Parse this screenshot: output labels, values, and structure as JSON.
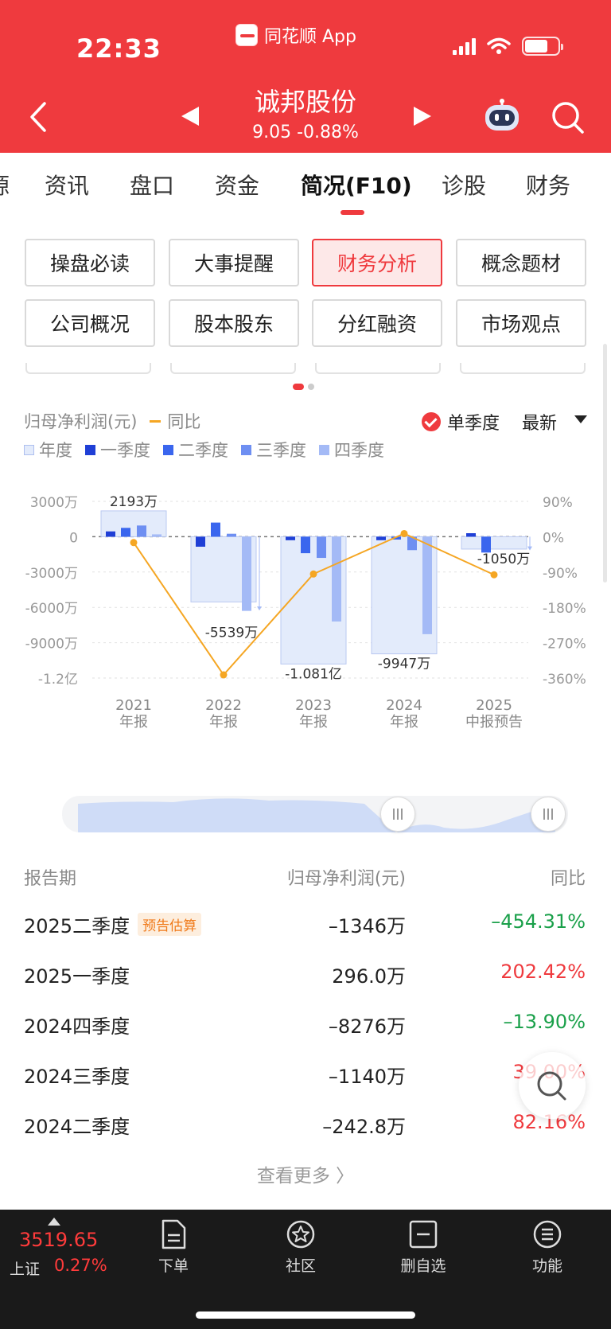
{
  "status_bar": {
    "time": "22:33",
    "app_name": "同花顺 App"
  },
  "header": {
    "stock_name": "诚邦股份",
    "stock_price": "9.05 -0.88%"
  },
  "tabs": [
    {
      "label": "源"
    },
    {
      "label": "资讯"
    },
    {
      "label": "盘口"
    },
    {
      "label": "资金"
    },
    {
      "label": "简况(F10)"
    },
    {
      "label": "诊股"
    },
    {
      "label": "财务"
    }
  ],
  "sub_buttons": [
    {
      "label": "操盘必读"
    },
    {
      "label": "大事提醒"
    },
    {
      "label": "财务分析"
    },
    {
      "label": "概念题材"
    },
    {
      "label": "公司概况"
    },
    {
      "label": "股本股东"
    },
    {
      "label": "分红融资"
    },
    {
      "label": "市场观点"
    }
  ],
  "chart_header": {
    "metric": "归母净利润(元)",
    "yoy_label": "同比",
    "single_quarter": "单季度",
    "latest": "最新"
  },
  "legend": [
    {
      "label": "年度",
      "color": "#e3ebfb"
    },
    {
      "label": "一季度",
      "color": "#1f3fd6"
    },
    {
      "label": "二季度",
      "color": "#3a66ee"
    },
    {
      "label": "三季度",
      "color": "#6e8ff2"
    },
    {
      "label": "四季度",
      "color": "#a4baf6"
    }
  ],
  "chart_data": {
    "type": "bar",
    "categories": [
      "2021\n年报",
      "2022\n年报",
      "2023\n年报",
      "2024\n年报",
      "2025\n中报预告"
    ],
    "annual_values_wan": [
      2193,
      -5539,
      -10810,
      -9947,
      -1050
    ],
    "annual_labels": [
      "2193万",
      "-5539万",
      "-1.081亿",
      "-9947万",
      "-1050万"
    ],
    "series": [
      {
        "name": "一季度",
        "values": [
          450,
          -850,
          -300,
          -300,
          296
        ]
      },
      {
        "name": "二季度",
        "values": [
          750,
          1200,
          -1400,
          -243,
          -1346
        ]
      },
      {
        "name": "三季度",
        "values": [
          950,
          250,
          -1800,
          -1140,
          null
        ]
      },
      {
        "name": "四季度",
        "values": [
          200,
          -6300,
          -7200,
          -8276,
          null
        ]
      }
    ],
    "yoy_series": {
      "name": "同比",
      "values": [
        -15,
        -352,
        -95,
        8,
        -97
      ]
    },
    "y_left_ticks": [
      "3000万",
      "0",
      "-3000万",
      "-6000万",
      "-9000万",
      "-1.2亿"
    ],
    "y_left_range": [
      -12000,
      3000
    ],
    "y_right_ticks": [
      "90%",
      "0%",
      "-90%",
      "-180%",
      "-270%",
      "-360%"
    ],
    "y_right_range": [
      -360,
      90
    ]
  },
  "table": {
    "headers": {
      "period": "报告期",
      "value": "归母净利润(元)",
      "yoy": "同比"
    },
    "rows": [
      {
        "period": "2025二季度",
        "tag": "预告估算",
        "value": "–1346万",
        "yoy": "–454.31%",
        "trend": "down"
      },
      {
        "period": "2025一季度",
        "tag": "",
        "value": "296.0万",
        "yoy": "202.42%",
        "trend": "up"
      },
      {
        "period": "2024四季度",
        "tag": "",
        "value": "–8276万",
        "yoy": "–13.90%",
        "trend": "down"
      },
      {
        "period": "2024三季度",
        "tag": "",
        "value": "–1140万",
        "yoy": "39.00%",
        "trend": "up"
      },
      {
        "period": "2024二季度",
        "tag": "",
        "value": "–242.8万",
        "yoy": "82.16%",
        "trend": "up"
      }
    ],
    "more": "查看更多 〉"
  },
  "bottom_bar": {
    "index_value": "3519.65",
    "index_name": "上证",
    "index_pct": "0.27%",
    "nav": [
      {
        "label": "下单",
        "icon": "order-icon"
      },
      {
        "label": "社区",
        "icon": "community-icon"
      },
      {
        "label": "删自选",
        "icon": "remove-watchlist-icon"
      },
      {
        "label": "功能",
        "icon": "menu-icon"
      }
    ]
  }
}
